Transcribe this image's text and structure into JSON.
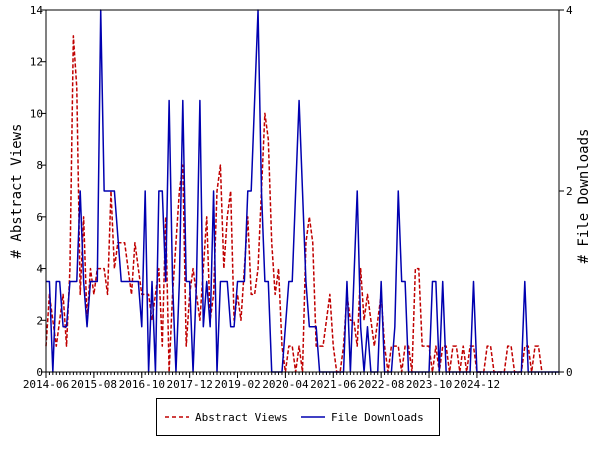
{
  "chart_data": {
    "type": "line",
    "xlabel": "",
    "ylabel": "# Abstract Views",
    "y2label": "# File Downloads",
    "x_tick_labels": [
      "2014-06",
      "2015-08",
      "2016-10",
      "2017-12",
      "2019-02",
      "2020-04",
      "2021-06",
      "2022-08",
      "2023-10",
      "2024-12"
    ],
    "ylim": [
      0,
      14
    ],
    "y_ticks": [
      0,
      2,
      4,
      6,
      8,
      10,
      12,
      14
    ],
    "y2lim": [
      0,
      4
    ],
    "y2_ticks": [
      0,
      2,
      4
    ],
    "grid": false,
    "legend_position": "bottom",
    "series": [
      {
        "name": "Abstract Views",
        "axis": "left",
        "color": "#c00000",
        "style": "dashed",
        "values": [
          1,
          3,
          2,
          1,
          2,
          3,
          1,
          4,
          13,
          11,
          3,
          6,
          2,
          4,
          3,
          4,
          4,
          4,
          3,
          7,
          4,
          5,
          5,
          5,
          4,
          3,
          5,
          4,
          3,
          3,
          3,
          2,
          3,
          4,
          1,
          6,
          0,
          3,
          5,
          7,
          8,
          1,
          3,
          4,
          3,
          2,
          4,
          6,
          2,
          3,
          7,
          8,
          4,
          6,
          7,
          2,
          3,
          2,
          4,
          6,
          3,
          3,
          4,
          7,
          10,
          9,
          5,
          3,
          4,
          1,
          0,
          1,
          1,
          0,
          1,
          0,
          5,
          6,
          5,
          1,
          1,
          1,
          2,
          3,
          1,
          0,
          0,
          1,
          3,
          2,
          2,
          1,
          4,
          2,
          3,
          2,
          1,
          2,
          3,
          1,
          0,
          1,
          1,
          1,
          0,
          1,
          1,
          0,
          4,
          4,
          1,
          1,
          1,
          0,
          1,
          0,
          1,
          1,
          0,
          1,
          1,
          0,
          1,
          0,
          1,
          1,
          0,
          0,
          0,
          1,
          1,
          0,
          0,
          0,
          0,
          1,
          1,
          0,
          0,
          0,
          1,
          1,
          0,
          1,
          1,
          0
        ]
      },
      {
        "name": "File Downloads",
        "axis": "right",
        "color": "#0000b0",
        "style": "solid",
        "values": [
          1,
          1,
          0,
          1,
          1,
          0.5,
          0.5,
          1,
          1,
          1,
          2,
          1,
          0.5,
          1,
          1,
          1,
          4,
          2,
          2,
          2,
          2,
          1.5,
          1,
          1,
          1,
          1,
          1,
          1,
          0.5,
          2,
          0,
          1,
          0,
          2,
          2,
          1,
          3,
          1,
          0,
          1,
          3,
          1,
          1,
          0,
          1,
          3,
          0.5,
          1,
          0.5,
          2,
          0,
          1,
          1,
          1,
          0.5,
          0.5,
          1,
          1,
          1,
          2,
          2,
          3,
          4,
          2,
          1,
          1,
          0,
          0,
          0,
          0,
          0.5,
          1,
          1,
          2,
          3,
          2,
          1,
          0.5,
          0.5,
          0.5,
          0,
          0,
          0,
          0,
          0,
          0,
          0,
          0,
          1,
          0,
          1,
          2,
          0.5,
          0,
          0.5,
          0,
          0,
          0,
          1,
          0,
          0,
          0,
          0.5,
          2,
          1,
          1,
          0,
          0,
          0,
          0,
          0,
          0,
          0,
          1,
          1,
          0,
          1,
          0,
          0,
          0,
          0,
          0,
          0,
          0,
          0,
          1,
          0,
          0,
          0,
          0,
          0,
          0,
          0,
          0,
          0,
          0,
          0,
          0,
          0,
          0,
          1,
          0,
          0,
          0,
          0,
          0,
          0,
          0,
          0,
          0,
          0
        ]
      }
    ]
  },
  "legend": {
    "items": [
      {
        "label": "Abstract Views",
        "color": "#c00000",
        "style": "dashed"
      },
      {
        "label": "File Downloads",
        "color": "#0000b0",
        "style": "solid"
      }
    ]
  }
}
